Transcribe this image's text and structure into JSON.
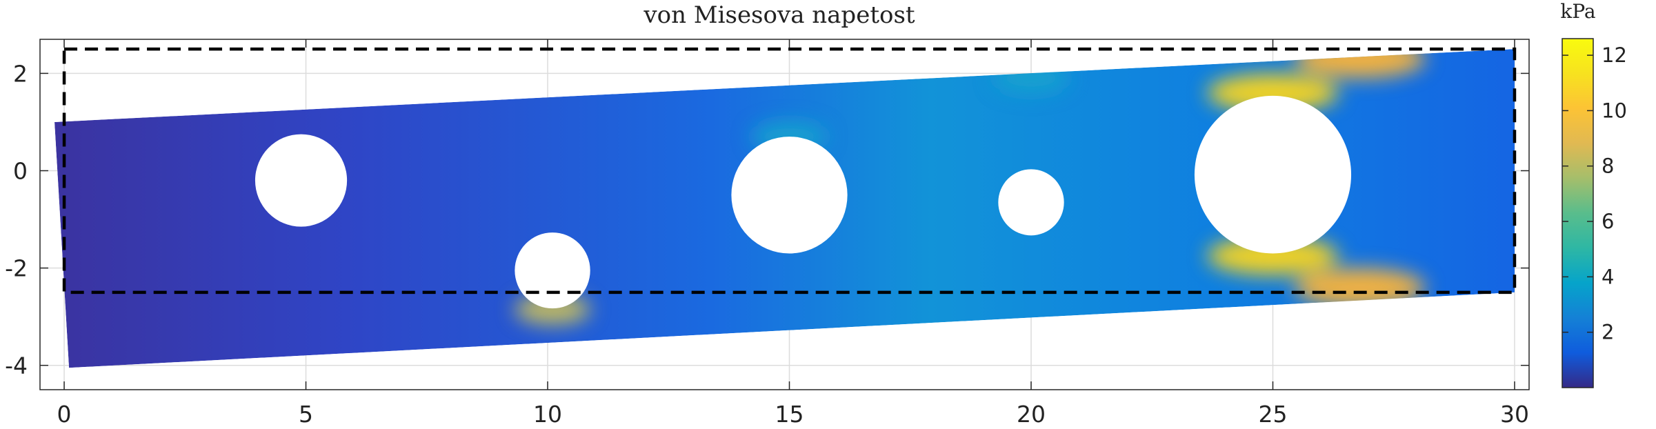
{
  "chart_data": {
    "type": "heatmap",
    "title": "von Misesova napetost",
    "xlabel": "",
    "ylabel": "",
    "xlim": [
      -0.5,
      30.3
    ],
    "ylim": [
      -4.5,
      2.7
    ],
    "xticks": [
      0,
      5,
      10,
      15,
      20,
      25,
      30
    ],
    "xtick_labels": [
      "0",
      "5",
      "10",
      "15",
      "20",
      "25",
      "30"
    ],
    "yticks": [
      2,
      0,
      -2,
      -4
    ],
    "ytick_labels": [
      "2",
      "0",
      "-2",
      "-4"
    ],
    "grid": true,
    "colormap": "parula",
    "colorbar": {
      "unit": "kPa",
      "range": [
        0,
        12.6
      ],
      "ticks": [
        2,
        4,
        6,
        8,
        10,
        12
      ],
      "tick_labels": [
        "2",
        "4",
        "6",
        "8",
        "10",
        "12"
      ]
    },
    "undeformed_outline": {
      "style": "dashed black",
      "x": [
        0,
        30
      ],
      "y": [
        -2.5,
        2.5
      ]
    },
    "deformed_domain": {
      "corners": [
        [
          -0.2,
          1.0
        ],
        [
          30.0,
          2.5
        ],
        [
          30.0,
          -2.5
        ],
        [
          0.1,
          -4.05
        ]
      ]
    },
    "holes": [
      {
        "cx": 4.9,
        "cy": -0.2,
        "r": 0.95
      },
      {
        "cx": 10.1,
        "cy": -2.05,
        "r": 0.78
      },
      {
        "cx": 15.0,
        "cy": -0.5,
        "r": 1.2
      },
      {
        "cx": 20.0,
        "cy": -0.65,
        "r": 0.68
      },
      {
        "cx": 25.0,
        "cy": -0.08,
        "r": 1.62
      }
    ],
    "stress_hotspots": [
      {
        "x": 25.0,
        "y": 1.6,
        "value": 11.5
      },
      {
        "x": 25.0,
        "y": -1.75,
        "value": 11.5
      },
      {
        "x": 26.8,
        "y": 2.3,
        "value": 10.5
      },
      {
        "x": 26.8,
        "y": -2.4,
        "value": 10.5
      },
      {
        "x": 10.1,
        "y": -2.85,
        "value": 8.5
      },
      {
        "x": 15.0,
        "y": 0.7,
        "value": 5.0
      },
      {
        "x": 20.0,
        "y": 1.9,
        "value": 5.5
      }
    ]
  }
}
